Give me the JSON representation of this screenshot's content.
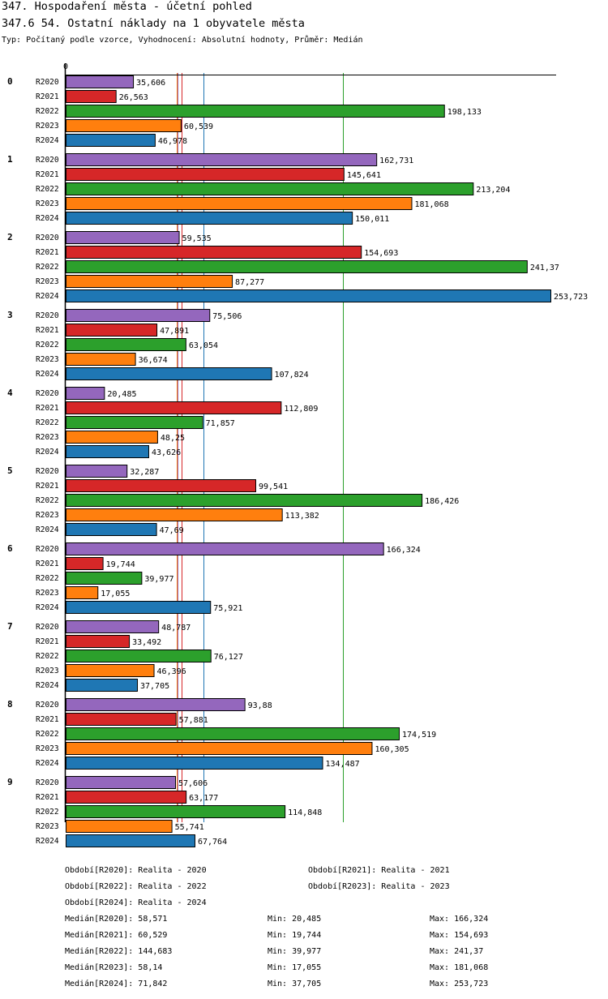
{
  "header": {
    "title": "347. Hospodaření města - účetní pohled",
    "subtitle": "347.6 54. Ostatní náklady na 1 obyvatele města",
    "type_line": "Typ: Počítaný podle vzorce, Vyhodnocení: Absolutní hodnoty, Průměr: Medián"
  },
  "chart_data": {
    "type": "bar",
    "orientation": "horizontal",
    "xlim": [
      0,
      253.723
    ],
    "axis_origin_label": "0",
    "categories": [
      "0",
      "1",
      "2",
      "3",
      "4",
      "5",
      "6",
      "7",
      "8",
      "9"
    ],
    "series": [
      {
        "name": "R2020",
        "color": "#9467bd",
        "values": [
          35.606,
          162.731,
          59.535,
          75.506,
          20.485,
          32.287,
          166.324,
          48.787,
          93.88,
          57.606
        ],
        "labels": [
          "35,606",
          "162,731",
          "59,535",
          "75,506",
          "20,485",
          "32,287",
          "166,324",
          "48,787",
          "93,88",
          "57,606"
        ]
      },
      {
        "name": "R2021",
        "color": "#d62728",
        "values": [
          26.563,
          145.641,
          154.693,
          47.891,
          112.809,
          99.541,
          19.744,
          33.492,
          57.881,
          63.177
        ],
        "labels": [
          "26,563",
          "145,641",
          "154,693",
          "47,891",
          "112,809",
          "99,541",
          "19,744",
          "33,492",
          "57,881",
          "63,177"
        ]
      },
      {
        "name": "R2022",
        "color": "#2ca02c",
        "values": [
          198.133,
          213.204,
          241.37,
          63.054,
          71.857,
          186.426,
          39.977,
          76.127,
          174.519,
          114.848
        ],
        "labels": [
          "198,133",
          "213,204",
          "241,37",
          "63,054",
          "71,857",
          "186,426",
          "39,977",
          "76,127",
          "174,519",
          "114,848"
        ]
      },
      {
        "name": "R2023",
        "color": "#ff7f0e",
        "values": [
          60.539,
          181.068,
          87.277,
          36.674,
          48.25,
          113.382,
          17.055,
          46.396,
          160.305,
          55.741
        ],
        "labels": [
          "60,539",
          "181,068",
          "87,277",
          "36,674",
          "48,25",
          "113,382",
          "17,055",
          "46,396",
          "160,305",
          "55,741"
        ]
      },
      {
        "name": "R2024",
        "color": "#1f77b4",
        "values": [
          46.978,
          150.011,
          253.723,
          107.824,
          43.626,
          47.69,
          75.921,
          37.705,
          134.487,
          67.764
        ],
        "labels": [
          "46,978",
          "150,011",
          "253,723",
          "107,824",
          "43,626",
          "47,69",
          "75,921",
          "37,705",
          "134,487",
          "67,764"
        ]
      }
    ],
    "median_lines": [
      {
        "series": "R2020",
        "value": 58.571,
        "color": "#9467bd"
      },
      {
        "series": "R2021",
        "value": 60.529,
        "color": "#d62728"
      },
      {
        "series": "R2022",
        "value": 144.683,
        "color": "#2ca02c"
      },
      {
        "series": "R2023",
        "value": 58.14,
        "color": "#ff7f0e"
      },
      {
        "series": "R2024",
        "value": 71.842,
        "color": "#1f77b4"
      }
    ]
  },
  "legend": {
    "periods": [
      "Období[R2020]: Realita - 2020",
      "Období[R2021]: Realita - 2021",
      "Období[R2022]: Realita - 2022",
      "Období[R2023]: Realita - 2023",
      "Období[R2024]: Realita - 2024"
    ],
    "stats": [
      {
        "median": "Medián[R2020]: 58,571",
        "min": "Min: 20,485",
        "max": "Max: 166,324"
      },
      {
        "median": "Medián[R2021]: 60,529",
        "min": "Min: 19,744",
        "max": "Max: 154,693"
      },
      {
        "median": "Medián[R2022]: 144,683",
        "min": "Min: 39,977",
        "max": "Max: 241,37"
      },
      {
        "median": "Medián[R2023]: 58,14",
        "min": "Min: 17,055",
        "max": "Max: 181,068"
      },
      {
        "median": "Medián[R2024]: 71,842",
        "min": "Min: 37,705",
        "max": "Max: 253,723"
      }
    ]
  }
}
